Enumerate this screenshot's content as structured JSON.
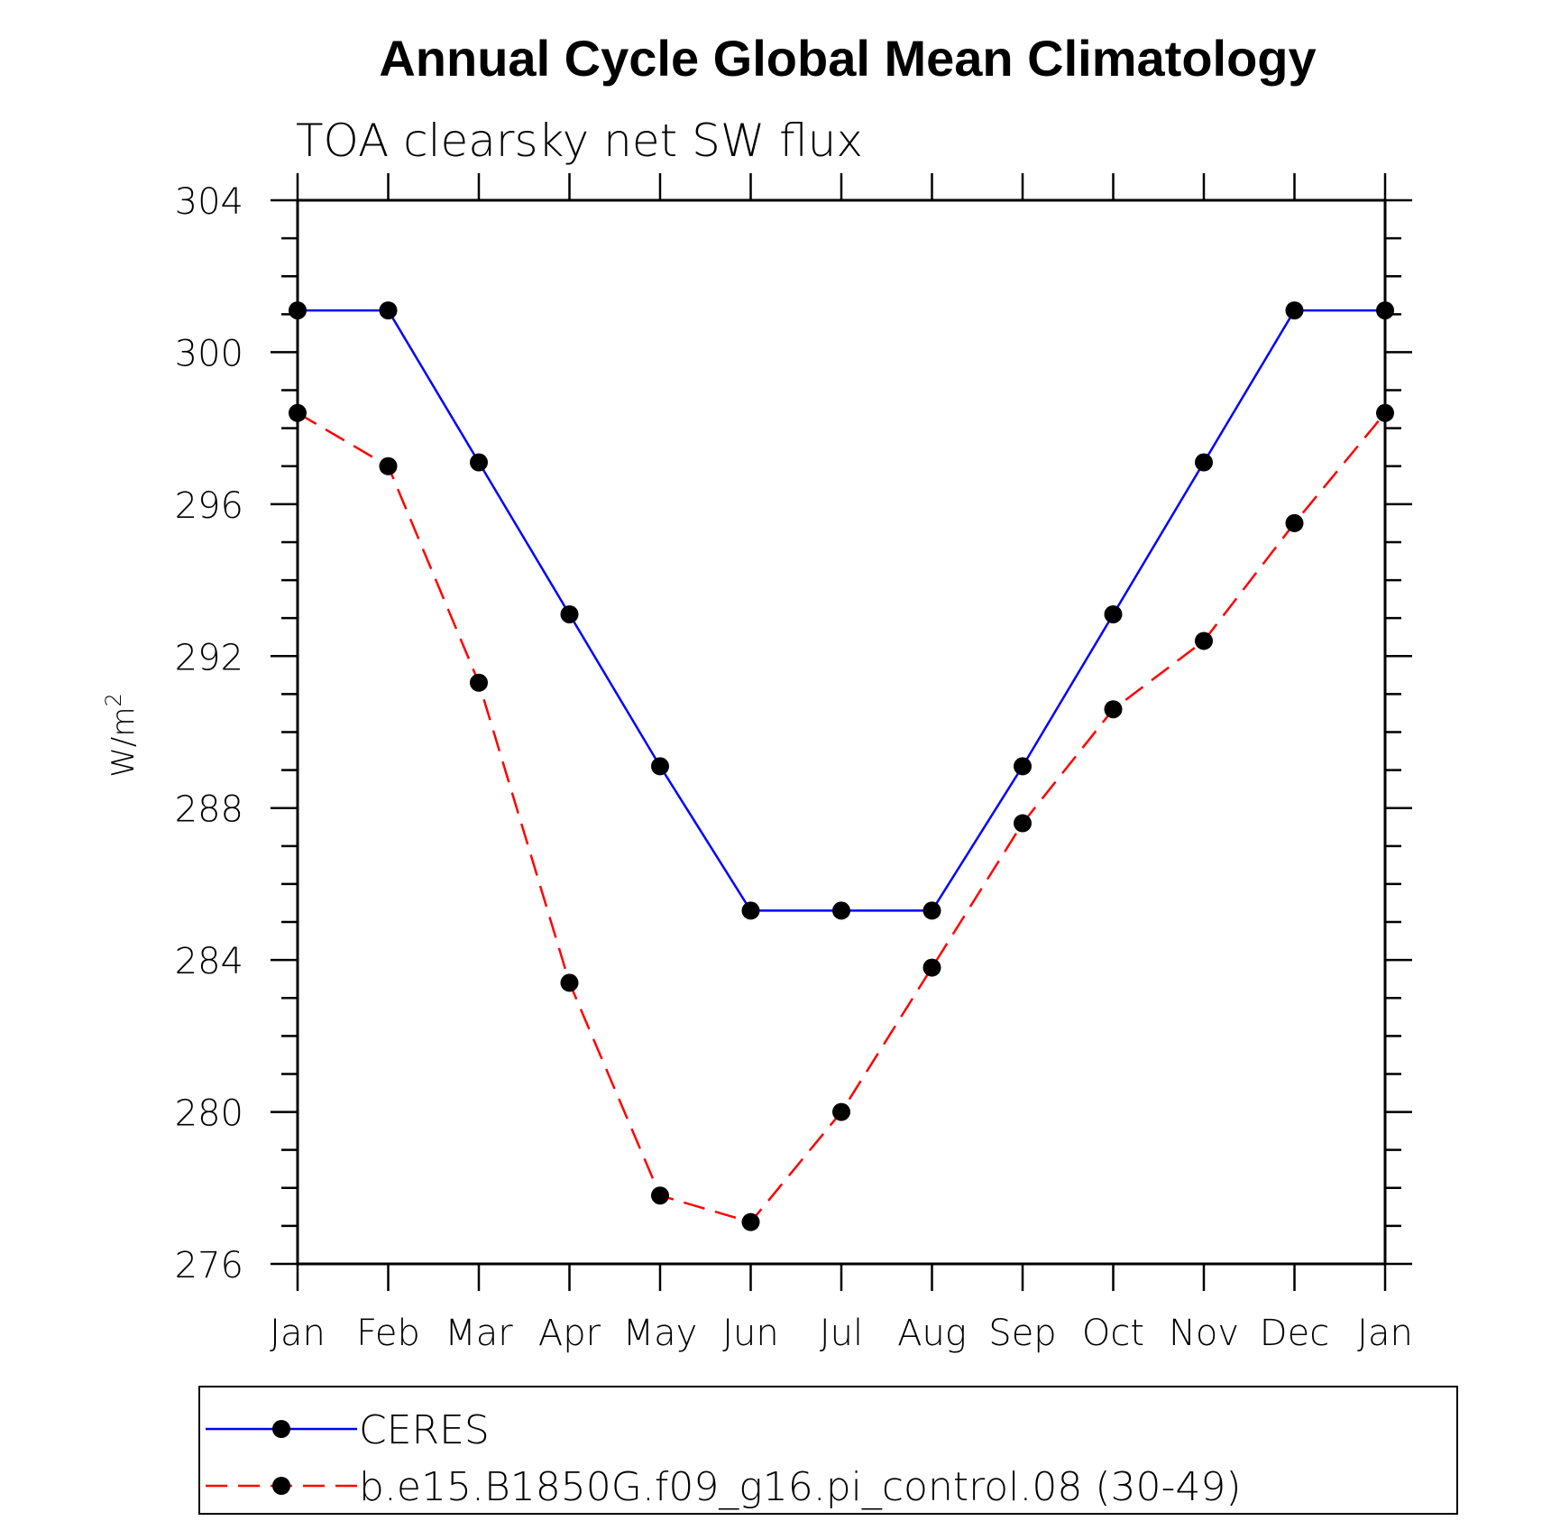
{
  "chart_data": {
    "type": "line",
    "title": "Annual Cycle Global Mean Climatology",
    "subtitle": "TOA clearsky net SW flux",
    "ylabel": "W/m",
    "ylabel_superscript": "2",
    "categories": [
      "Jan",
      "Feb",
      "Mar",
      "Apr",
      "May",
      "Jun",
      "Jul",
      "Aug",
      "Sep",
      "Oct",
      "Nov",
      "Dec",
      "Jan"
    ],
    "ylim": [
      276,
      304
    ],
    "yticks": [
      276,
      280,
      284,
      288,
      292,
      296,
      300,
      304
    ],
    "y_minor_step": 1,
    "grid": false,
    "legend_position": "bottom",
    "series": [
      {
        "name": "CERES",
        "color": "#0000ff",
        "line_style": "solid",
        "marker": "filled-circle",
        "values": [
          301.1,
          301.1,
          297.1,
          293.1,
          289.1,
          285.3,
          285.3,
          285.3,
          289.1,
          293.1,
          297.1,
          301.1,
          301.1
        ]
      },
      {
        "name": "b.e15.B1850G.f09_g16.pi_control.08 (30-49)",
        "color": "#ff0000",
        "line_style": "dashed",
        "marker": "filled-circle",
        "values": [
          298.4,
          297.0,
          291.3,
          283.4,
          277.8,
          277.1,
          280.0,
          283.8,
          287.6,
          290.6,
          292.4,
          295.5,
          298.4
        ]
      }
    ]
  }
}
